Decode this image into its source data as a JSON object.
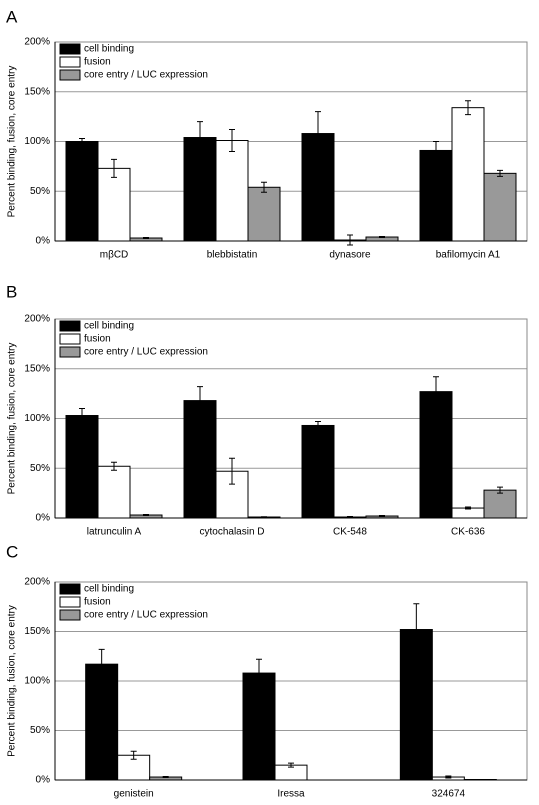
{
  "chart_data": [
    {
      "type": "bar",
      "label": "A",
      "ylabel": "Percent binding, fusion, core entry",
      "categories": [
        "mβCD",
        "blebbistatin",
        "dynasore",
        "bafilomycin A1"
      ],
      "series": [
        {
          "name": "cell binding",
          "color": "#000000",
          "values": [
            100,
            104,
            108,
            91
          ],
          "errors": [
            3,
            16,
            22,
            9
          ]
        },
        {
          "name": "fusion",
          "color": "#ffffff",
          "values": [
            73,
            101,
            1,
            134
          ],
          "errors": [
            9,
            11,
            5,
            7
          ]
        },
        {
          "name": "core entry / LUC expression",
          "color": "#999999",
          "values": [
            3,
            54,
            4,
            68
          ],
          "errors": [
            0.5,
            5,
            0.5,
            3
          ]
        }
      ],
      "ylim": [
        0,
        200
      ],
      "yticks": [
        {
          "value": 0,
          "label": "0%"
        },
        {
          "value": 50,
          "label": "50%"
        },
        {
          "value": 100,
          "label": "100%"
        },
        {
          "value": 150,
          "label": "150%"
        },
        {
          "value": 200,
          "label": "200%"
        }
      ],
      "grid": true,
      "legend": "upper left"
    },
    {
      "type": "bar",
      "label": "B",
      "ylabel": "Percent binding, fusion, core entry",
      "categories": [
        "latrunculin A",
        "cytochalasin D",
        "CK-548",
        "CK-636"
      ],
      "series": [
        {
          "name": "cell binding",
          "color": "#000000",
          "values": [
            103,
            118,
            93,
            127
          ],
          "errors": [
            7,
            14,
            4,
            15
          ]
        },
        {
          "name": "fusion",
          "color": "#ffffff",
          "values": [
            52,
            47,
            1,
            10
          ],
          "errors": [
            4,
            13,
            0.5,
            1
          ]
        },
        {
          "name": "core entry / LUC expression",
          "color": "#999999",
          "values": [
            3,
            1,
            2,
            28
          ],
          "errors": [
            0.5,
            0.3,
            0.5,
            3
          ]
        }
      ],
      "ylim": [
        0,
        200
      ],
      "yticks": [
        {
          "value": 0,
          "label": "0%"
        },
        {
          "value": 50,
          "label": "50%"
        },
        {
          "value": 100,
          "label": "100%"
        },
        {
          "value": 150,
          "label": "150%"
        },
        {
          "value": 200,
          "label": "200%"
        }
      ],
      "grid": true,
      "legend": "upper left"
    },
    {
      "type": "bar",
      "label": "C",
      "ylabel": "Percent binding, fusion, core entry",
      "categories": [
        "genistein",
        "Iressa",
        "324674"
      ],
      "series": [
        {
          "name": "cell binding",
          "color": "#000000",
          "values": [
            117,
            108,
            152
          ],
          "errors": [
            15,
            14,
            26
          ]
        },
        {
          "name": "fusion",
          "color": "#ffffff",
          "values": [
            25,
            15,
            3
          ],
          "errors": [
            4,
            2,
            1
          ]
        },
        {
          "name": "core entry / LUC expression",
          "color": "#999999",
          "values": [
            3,
            0,
            0.5
          ],
          "errors": [
            0.5,
            0,
            0
          ]
        }
      ],
      "ylim": [
        0,
        200
      ],
      "yticks": [
        {
          "value": 0,
          "label": "0%"
        },
        {
          "value": 50,
          "label": "50%"
        },
        {
          "value": 100,
          "label": "100%"
        },
        {
          "value": 150,
          "label": "150%"
        },
        {
          "value": 200,
          "label": "200%"
        }
      ],
      "grid": true,
      "legend": "upper left"
    }
  ]
}
